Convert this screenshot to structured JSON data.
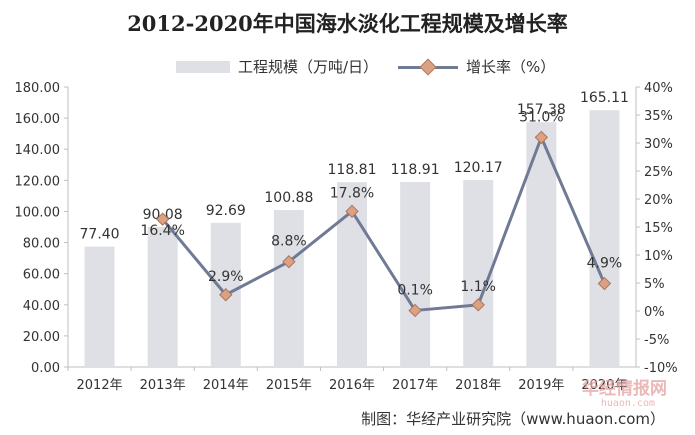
{
  "chart_data": {
    "type": "bar",
    "title": "2012-2020年中国海水淡化工程规模及增长率",
    "categories": [
      "2012年",
      "2013年",
      "2014年",
      "2015年",
      "2016年",
      "2017年",
      "2018年",
      "2019年",
      "2020年"
    ],
    "series": [
      {
        "name": "工程规模（万吨/日）",
        "type": "bar",
        "axis": "left",
        "values": [
          77.4,
          90.08,
          92.69,
          100.88,
          118.81,
          118.91,
          120.17,
          157.38,
          165.11
        ],
        "labels": [
          "77.40",
          "90.08",
          "92.69",
          "100.88",
          "118.81",
          "118.91",
          "120.17",
          "157.38",
          "165.11"
        ],
        "color": "#dfe0e6"
      },
      {
        "name": "增长率（%）",
        "type": "line",
        "axis": "right",
        "values": [
          null,
          16.4,
          2.9,
          8.8,
          17.8,
          0.1,
          1.1,
          31.0,
          4.9
        ],
        "labels": [
          "",
          "16.4%",
          "2.9%",
          "8.8%",
          "17.8%",
          "0.1%",
          "1.1%",
          "31.0%",
          "4.9%"
        ],
        "color": "#707a94",
        "marker_color": "#dca083"
      }
    ],
    "y_left": {
      "ylim": [
        0,
        180
      ],
      "ticks": [
        "0.00",
        "20.00",
        "40.00",
        "60.00",
        "80.00",
        "100.00",
        "120.00",
        "140.00",
        "160.00",
        "180.00"
      ]
    },
    "y_right": {
      "ylim": [
        -10,
        40
      ],
      "ticks": [
        "-10%",
        "-5%",
        "0%",
        "5%",
        "10%",
        "15%",
        "20%",
        "25%",
        "30%",
        "35%",
        "40%"
      ]
    },
    "grid": false,
    "legend": "top-center"
  },
  "footer": "制图：华经产业研究院（www.huaon.com）",
  "watermark": {
    "main": "华经情报网",
    "sub": "huaon.com"
  }
}
